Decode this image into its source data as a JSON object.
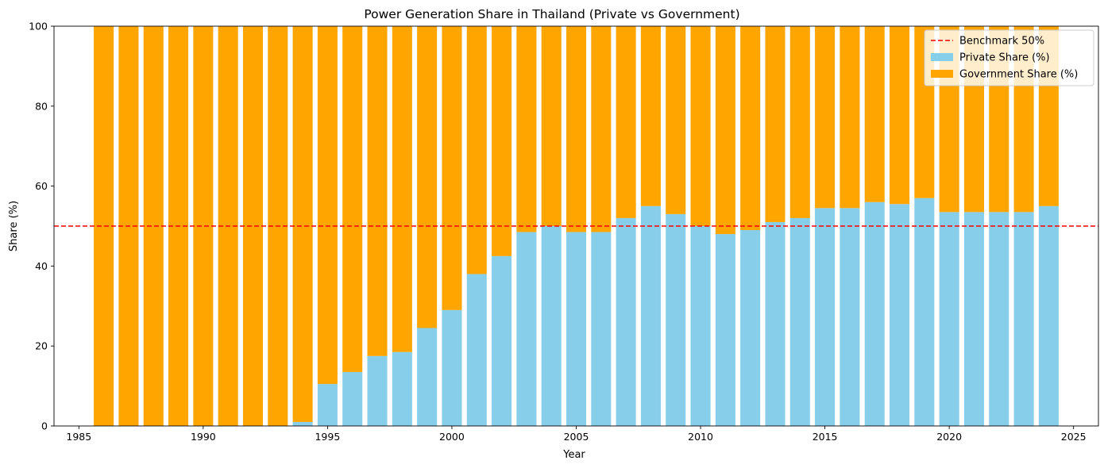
{
  "chart_data": {
    "type": "bar",
    "stacked": true,
    "title": "Power Generation Share in Thailand (Private vs Government)",
    "xlabel": "Year",
    "ylabel": "Share (%)",
    "xlim": [
      1984,
      2026
    ],
    "ylim": [
      0,
      100
    ],
    "xticks": [
      1985,
      1990,
      1995,
      2000,
      2005,
      2010,
      2015,
      2020,
      2025
    ],
    "yticks": [
      0,
      20,
      40,
      60,
      80,
      100
    ],
    "grid": false,
    "legend_position": "top-right",
    "x": [
      1986,
      1987,
      1988,
      1989,
      1990,
      1991,
      1992,
      1993,
      1994,
      1995,
      1996,
      1997,
      1998,
      1999,
      2000,
      2001,
      2002,
      2003,
      2004,
      2005,
      2006,
      2007,
      2008,
      2009,
      2010,
      2011,
      2012,
      2013,
      2014,
      2015,
      2016,
      2017,
      2018,
      2019,
      2020,
      2021,
      2022,
      2023,
      2024
    ],
    "series": [
      {
        "name": "Private Share (%)",
        "color": "#87ceeb",
        "values": [
          0,
          0,
          0,
          0,
          0,
          0,
          0,
          0,
          1.0,
          10.5,
          13.5,
          17.5,
          18.5,
          24.5,
          29.0,
          38.0,
          42.5,
          48.5,
          50.0,
          48.5,
          48.5,
          52.0,
          55.0,
          53.0,
          50.0,
          48.0,
          49.0,
          51.0,
          52.0,
          54.5,
          54.5,
          56.0,
          55.5,
          57.0,
          53.5,
          53.5,
          53.5,
          53.5,
          55.0
        ]
      },
      {
        "name": "Government Share (%)",
        "color": "#ffa500",
        "values": [
          100,
          100,
          100,
          100,
          100,
          100,
          100,
          100,
          99.0,
          89.5,
          86.5,
          82.5,
          81.5,
          75.5,
          71.0,
          62.0,
          57.5,
          51.5,
          50.0,
          51.5,
          51.5,
          48.0,
          45.0,
          47.0,
          50.0,
          52.0,
          51.0,
          49.0,
          48.0,
          45.5,
          45.5,
          44.0,
          44.5,
          43.0,
          46.5,
          46.5,
          46.5,
          46.5,
          45.0
        ]
      }
    ],
    "reference_line": {
      "name": "Benchmark 50%",
      "value": 50,
      "color": "#ff0000",
      "style": "dashed"
    }
  }
}
